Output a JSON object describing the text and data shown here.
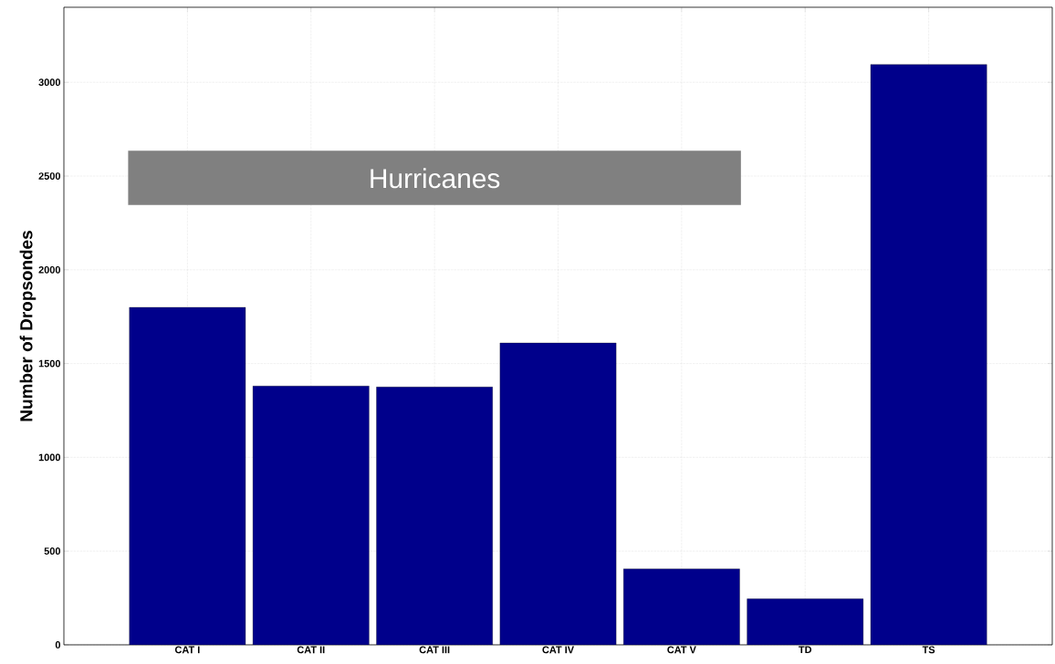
{
  "chart_data": {
    "type": "bar",
    "ylabel": "Number of Dropsondes",
    "categories": [
      "CAT I",
      "CAT II",
      "CAT III",
      "CAT IV",
      "CAT V",
      "TD",
      "TS"
    ],
    "values": [
      1800,
      1380,
      1375,
      1610,
      405,
      245,
      3095
    ],
    "color": "#00008b",
    "ylim": [
      0,
      3400
    ],
    "yticks": [
      0,
      500,
      1000,
      1500,
      2000,
      2500,
      3000
    ],
    "grid": true,
    "annotations": [
      "Hurricanes"
    ]
  }
}
